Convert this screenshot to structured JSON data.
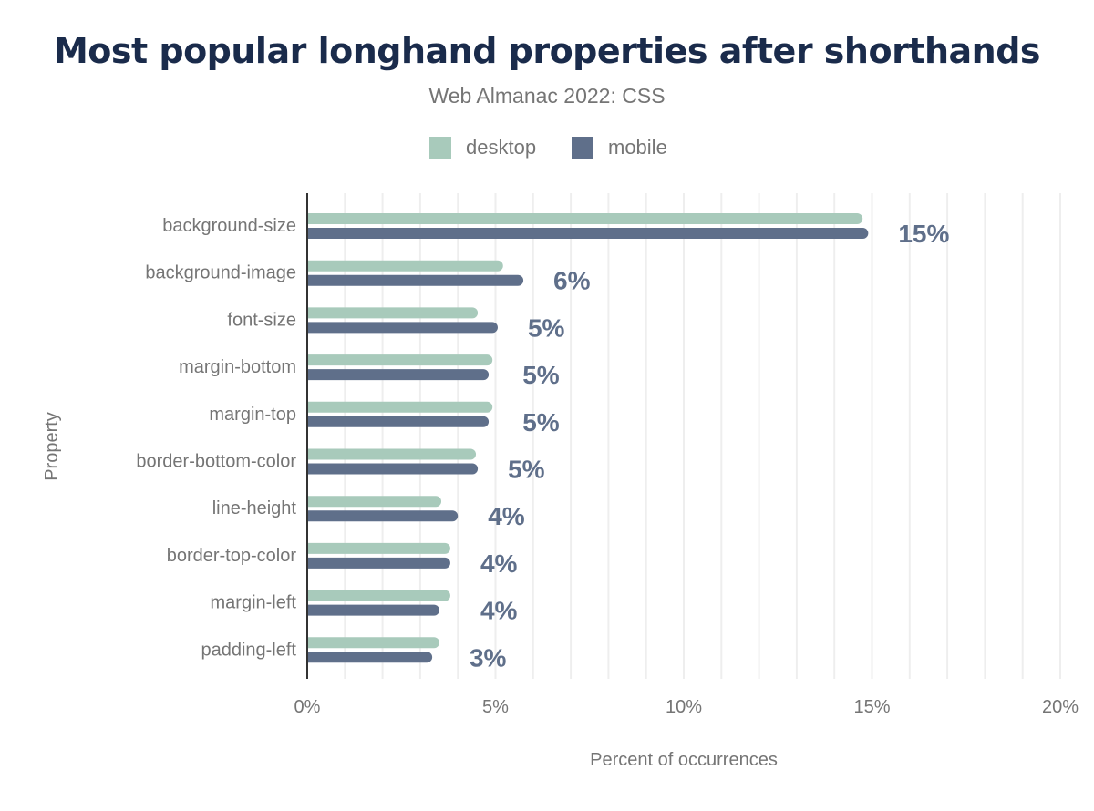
{
  "chart_data": {
    "type": "bar",
    "orientation": "horizontal",
    "title": "Most popular longhand properties after shorthands",
    "subtitle": "Web Almanac 2022: CSS",
    "xlabel": "Percent of occurrences",
    "ylabel": "Property",
    "xlim": [
      0,
      20
    ],
    "xticks": [
      "0%",
      "5%",
      "10%",
      "15%",
      "20%"
    ],
    "grid": true,
    "legend_position": "top",
    "categories": [
      "background-size",
      "background-image",
      "font-size",
      "margin-bottom",
      "margin-top",
      "border-bottom-color",
      "line-height",
      "border-top-color",
      "margin-left",
      "padding-left"
    ],
    "series": [
      {
        "name": "desktop",
        "color": "#a8cabb",
        "values": [
          14.75,
          5.2,
          4.53,
          4.92,
          4.92,
          4.48,
          3.56,
          3.8,
          3.8,
          3.51
        ]
      },
      {
        "name": "mobile",
        "color": "#5f6f8a",
        "values": [
          14.9,
          5.74,
          5.06,
          4.82,
          4.82,
          4.53,
          4.0,
          3.8,
          3.51,
          3.32
        ]
      }
    ],
    "data_labels": [
      "15%",
      "6%",
      "5%",
      "5%",
      "5%",
      "5%",
      "4%",
      "4%",
      "4%",
      "3%"
    ]
  }
}
